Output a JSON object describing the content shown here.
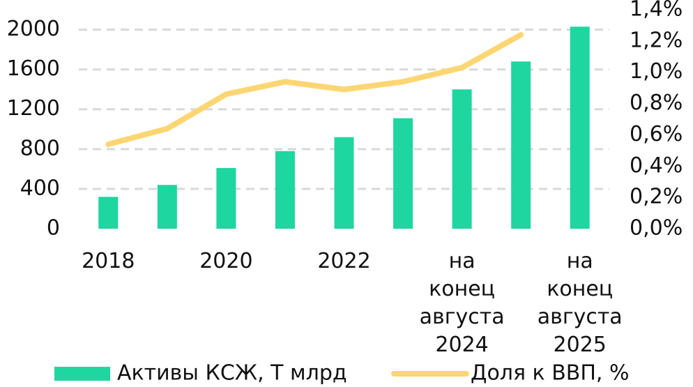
{
  "chart_data": {
    "type": "bar-line",
    "categories": [
      "2018",
      null,
      "2020",
      null,
      "2022",
      null,
      "на конец августа 2024",
      null,
      "на конец августа 2025"
    ],
    "series": [
      {
        "name": "Активы КСЖ, Т млрд",
        "type": "bar",
        "color": "#1ed6a0",
        "values": [
          320,
          440,
          610,
          780,
          920,
          1110,
          1400,
          1680,
          2030
        ]
      },
      {
        "name": "Доля к ВВП, %",
        "type": "line",
        "axis": "y2",
        "color": "#fdd673",
        "values": [
          0.54,
          0.64,
          0.86,
          0.94,
          0.89,
          0.94,
          1.03,
          1.24,
          null
        ]
      }
    ],
    "ylim": [
      0,
      2200
    ],
    "yticks": [
      0,
      400,
      800,
      1200,
      1600,
      2000
    ],
    "y2lim": [
      0,
      1.4
    ],
    "y2ticks": [
      {
        "value": 0,
        "label": "0,0%"
      },
      {
        "value": 0.2,
        "label": "0,2%"
      },
      {
        "value": 0.4,
        "label": "0,4%"
      },
      {
        "value": 0.6,
        "label": "0,6%"
      },
      {
        "value": 0.8,
        "label": "0,8%"
      },
      {
        "value": 1.0,
        "label": "1,0%"
      },
      {
        "value": 1.2,
        "label": "1,2%"
      },
      {
        "value": 1.4,
        "label": "1,4%"
      }
    ],
    "grid": true,
    "legend": "bottom"
  }
}
